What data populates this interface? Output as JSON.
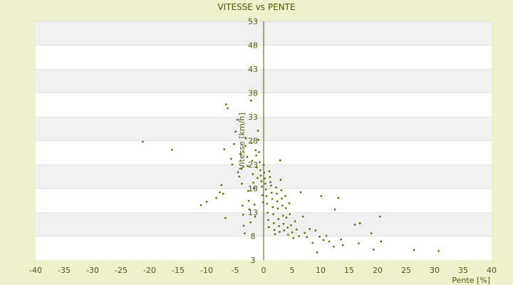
{
  "chart_data": {
    "type": "scatter",
    "title": "VITESSE vs PENTE",
    "xlabel": "Pente [%]",
    "ylabel": "Vitesse [km/h]",
    "xlim": [
      -40,
      40
    ],
    "ylim": [
      3,
      53
    ],
    "xticks": [
      -40,
      -35,
      -30,
      -25,
      -20,
      -15,
      -10,
      -5,
      0,
      5,
      10,
      15,
      20,
      25,
      30,
      35,
      40
    ],
    "yticks": [
      3,
      8,
      13,
      18,
      23,
      28,
      33,
      38,
      43,
      48,
      53
    ],
    "grid": "horizontal bands",
    "colors": {
      "background": "#edf2cc",
      "band_light": "#ffffff",
      "band_dark": "#f0f0f0",
      "marker": "#556b00",
      "axis": "#4f5a10"
    },
    "series": [
      {
        "points": [
          [
            -21.2,
            27.8
          ],
          [
            -16.1,
            26.1
          ],
          [
            -11.0,
            14.5
          ],
          [
            -10.0,
            15.2
          ],
          [
            -8.3,
            16.0
          ],
          [
            -7.7,
            17.2
          ],
          [
            -7.4,
            18.7
          ],
          [
            -7.1,
            16.9
          ],
          [
            -6.7,
            11.8
          ],
          [
            -6.6,
            35.6
          ],
          [
            -6.3,
            34.8
          ],
          [
            -6.9,
            26.2
          ],
          [
            -5.7,
            24.2
          ],
          [
            -5.5,
            23.0
          ],
          [
            -5.2,
            27.3
          ],
          [
            -4.9,
            29.9
          ],
          [
            -4.6,
            32.4
          ],
          [
            -4.5,
            21.4
          ],
          [
            -4.3,
            20.5
          ],
          [
            -4.1,
            25.2
          ],
          [
            -3.9,
            22.1
          ],
          [
            -3.8,
            19.0
          ],
          [
            -3.7,
            14.4
          ],
          [
            -3.6,
            12.5
          ],
          [
            -3.5,
            10.2
          ],
          [
            -3.3,
            8.6
          ],
          [
            -3.2,
            26.9
          ],
          [
            -3.1,
            28.5
          ],
          [
            -2.9,
            24.6
          ],
          [
            -2.8,
            22.7
          ],
          [
            -2.7,
            17.5
          ],
          [
            -2.6,
            15.4
          ],
          [
            -2.5,
            13.6
          ],
          [
            -2.3,
            10.9
          ],
          [
            -2.2,
            36.4
          ],
          [
            -2.1,
            27.5
          ],
          [
            -2.0,
            23.8
          ],
          [
            -1.9,
            21.0
          ],
          [
            -1.8,
            19.2
          ],
          [
            -1.7,
            18.1
          ],
          [
            -1.6,
            14.6
          ],
          [
            -1.5,
            12.1
          ],
          [
            -1.4,
            26.0
          ],
          [
            -1.3,
            24.9
          ],
          [
            -1.2,
            22.4
          ],
          [
            -1.1,
            20.2
          ],
          [
            -1.0,
            30.1
          ],
          [
            -0.9,
            28.2
          ],
          [
            -0.8,
            25.6
          ],
          [
            -0.7,
            23.5
          ],
          [
            -0.6,
            21.8
          ],
          [
            -0.5,
            20.7
          ],
          [
            -0.4,
            19.5
          ],
          [
            -0.3,
            18.4
          ],
          [
            -0.2,
            16.6
          ],
          [
            -0.1,
            15.1
          ],
          [
            0.0,
            22.9
          ],
          [
            0.1,
            21.3
          ],
          [
            0.2,
            20.1
          ],
          [
            0.3,
            19.0
          ],
          [
            0.4,
            17.8
          ],
          [
            0.5,
            16.4
          ],
          [
            0.6,
            14.8
          ],
          [
            0.7,
            12.9
          ],
          [
            0.8,
            11.4
          ],
          [
            0.9,
            9.9
          ],
          [
            1.0,
            21.6
          ],
          [
            1.1,
            20.4
          ],
          [
            1.2,
            19.3
          ],
          [
            1.3,
            18.6
          ],
          [
            1.4,
            17.1
          ],
          [
            1.5,
            15.8
          ],
          [
            1.6,
            14.1
          ],
          [
            1.7,
            12.6
          ],
          [
            1.8,
            10.7
          ],
          [
            1.9,
            9.3
          ],
          [
            2.0,
            8.4
          ],
          [
            2.2,
            18.2
          ],
          [
            2.3,
            16.9
          ],
          [
            2.4,
            15.3
          ],
          [
            2.5,
            13.8
          ],
          [
            2.6,
            11.6
          ],
          [
            2.7,
            10.1
          ],
          [
            2.8,
            8.9
          ],
          [
            2.9,
            23.9
          ],
          [
            3.0,
            19.8
          ],
          [
            3.1,
            17.6
          ],
          [
            3.2,
            15.9
          ],
          [
            3.3,
            14.4
          ],
          [
            3.4,
            12.3
          ],
          [
            3.5,
            10.6
          ],
          [
            3.6,
            9.2
          ],
          [
            3.8,
            16.4
          ],
          [
            3.9,
            13.9
          ],
          [
            4.0,
            11.9
          ],
          [
            4.2,
            9.8
          ],
          [
            4.3,
            8.3
          ],
          [
            4.5,
            14.9
          ],
          [
            4.6,
            12.6
          ],
          [
            4.8,
            10.3
          ],
          [
            5.0,
            8.8
          ],
          [
            5.2,
            7.6
          ],
          [
            5.5,
            11.1
          ],
          [
            5.8,
            9.4
          ],
          [
            6.2,
            8.0
          ],
          [
            6.5,
            17.2
          ],
          [
            6.9,
            12.1
          ],
          [
            7.2,
            8.7
          ],
          [
            7.6,
            7.8
          ],
          [
            8.1,
            9.5
          ],
          [
            8.6,
            6.6
          ],
          [
            9.1,
            9.2
          ],
          [
            9.4,
            4.6
          ],
          [
            9.8,
            7.9
          ],
          [
            10.1,
            16.4
          ],
          [
            10.5,
            7.2
          ],
          [
            11.0,
            8.1
          ],
          [
            11.5,
            6.9
          ],
          [
            12.3,
            5.8
          ],
          [
            12.5,
            13.6
          ],
          [
            13.1,
            16.0
          ],
          [
            13.6,
            7.3
          ],
          [
            13.9,
            6.1
          ],
          [
            16.0,
            10.4
          ],
          [
            16.7,
            6.5
          ],
          [
            16.9,
            10.7
          ],
          [
            18.9,
            8.6
          ],
          [
            19.3,
            5.2
          ],
          [
            20.4,
            12.1
          ],
          [
            20.6,
            6.9
          ],
          [
            26.4,
            5.1
          ],
          [
            30.7,
            4.9
          ]
        ]
      }
    ]
  }
}
